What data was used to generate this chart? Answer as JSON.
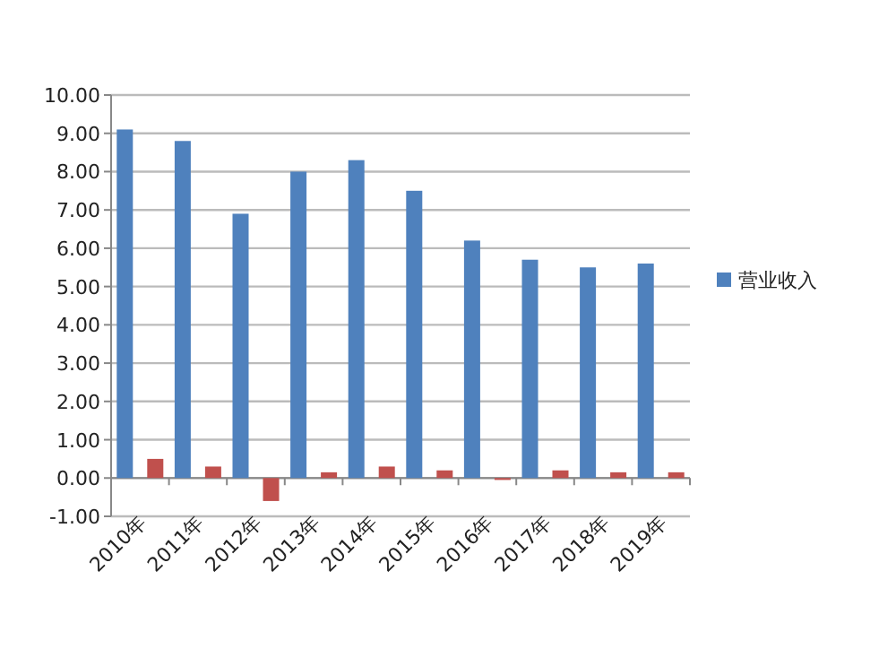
{
  "chart_data": {
    "type": "bar",
    "categories": [
      "2010年",
      "2011年",
      "2012年",
      "2013年",
      "2014年",
      "2015年",
      "2016年",
      "2017年",
      "2018年",
      "2019年"
    ],
    "series": [
      {
        "name": "营业收入",
        "color": "#4f81bd",
        "values": [
          9.1,
          8.8,
          6.9,
          8.0,
          8.3,
          7.5,
          6.2,
          5.7,
          5.5,
          5.6
        ]
      },
      {
        "color": "#c0504d",
        "values": [
          0.5,
          0.3,
          -0.6,
          0.15,
          0.3,
          0.2,
          -0.05,
          0.2,
          0.15,
          0.15
        ]
      }
    ],
    "ylim": [
      -1,
      10
    ],
    "yticks": [
      {
        "value": -1,
        "label": "-1.00"
      },
      {
        "value": 0,
        "label": "0.00"
      },
      {
        "value": 1,
        "label": "1.00"
      },
      {
        "value": 2,
        "label": "2.00"
      },
      {
        "value": 3,
        "label": "3.00"
      },
      {
        "value": 4,
        "label": "4.00"
      },
      {
        "value": 5,
        "label": "5.00"
      },
      {
        "value": 6,
        "label": "6.00"
      },
      {
        "value": 7,
        "label": "7.00"
      },
      {
        "value": 8,
        "label": "8.00"
      },
      {
        "value": 9,
        "label": "9.00"
      },
      {
        "value": 10,
        "label": "10.00"
      }
    ],
    "grid": "y",
    "legend": "right"
  }
}
